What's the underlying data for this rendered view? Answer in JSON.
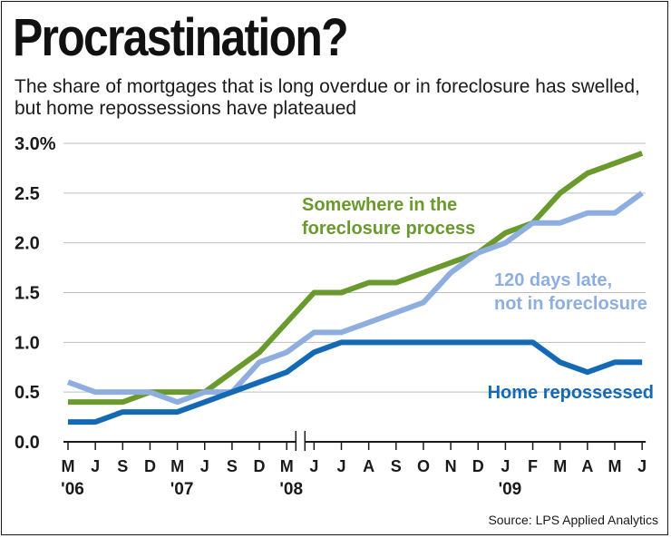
{
  "header": {
    "title": "Procrastination?",
    "subtitle": "The share of mortgages that is long overdue or in foreclosure has swelled, but home repossessions have plateaued"
  },
  "source": "Source: LPS Applied Analytics",
  "colors": {
    "green": "#6a9a2e",
    "light_blue": "#8eaee0",
    "dark_blue": "#1469b4",
    "grid": "#bdbdbd",
    "text": "#1a1a1a"
  },
  "chart_data": {
    "type": "line",
    "title": "Procrastination?",
    "subtitle": "The share of mortgages that is long overdue or in foreclosure has swelled, but home repossessions have plateaued",
    "categories": [
      "M",
      "J",
      "S",
      "D",
      "M",
      "J",
      "S",
      "D",
      "M",
      "J",
      "J",
      "A",
      "S",
      "O",
      "N",
      "D",
      "J",
      "F",
      "M",
      "A",
      "M",
      "J"
    ],
    "year_labels": [
      {
        "index": 0,
        "label": "'06"
      },
      {
        "index": 4,
        "label": "'07"
      },
      {
        "index": 8,
        "label": "'08"
      },
      {
        "index": 16,
        "label": "'09"
      }
    ],
    "axis_break_after_index": 8,
    "ylim": [
      0,
      3.0
    ],
    "yticks": [
      0,
      0.5,
      1.0,
      1.5,
      2.0,
      2.5,
      3.0
    ],
    "ytick_labels": [
      "0.0",
      "0.5",
      "1.0",
      "1.5",
      "2.0",
      "2.5",
      "3.0%"
    ],
    "grid": true,
    "series": [
      {
        "name": "Somewhere in the foreclosure process",
        "label_lines": [
          "Somewhere in the",
          "foreclosure process"
        ],
        "color": "#6a9a2e",
        "values": [
          0.4,
          0.4,
          0.4,
          0.5,
          0.5,
          0.5,
          0.7,
          0.9,
          1.2,
          1.5,
          1.5,
          1.6,
          1.6,
          1.7,
          1.8,
          1.9,
          2.1,
          2.2,
          2.5,
          2.7,
          2.8,
          2.9
        ]
      },
      {
        "name": "120 days late, not in foreclosure",
        "label_lines": [
          "120 days late,",
          "not in foreclosure"
        ],
        "color": "#8eaee0",
        "values": [
          0.6,
          0.5,
          0.5,
          0.5,
          0.4,
          0.5,
          0.5,
          0.8,
          0.9,
          1.1,
          1.1,
          1.2,
          1.3,
          1.4,
          1.7,
          1.9,
          2.0,
          2.2,
          2.2,
          2.3,
          2.3,
          2.5
        ]
      },
      {
        "name": "Home repossessed",
        "label_lines": [
          "Home repossessed"
        ],
        "color": "#1469b4",
        "values": [
          0.2,
          0.2,
          0.3,
          0.3,
          0.3,
          0.4,
          0.5,
          0.6,
          0.7,
          0.9,
          1.0,
          1.0,
          1.0,
          1.0,
          1.0,
          1.0,
          1.0,
          1.0,
          0.8,
          0.7,
          0.8,
          0.8
        ]
      }
    ]
  }
}
